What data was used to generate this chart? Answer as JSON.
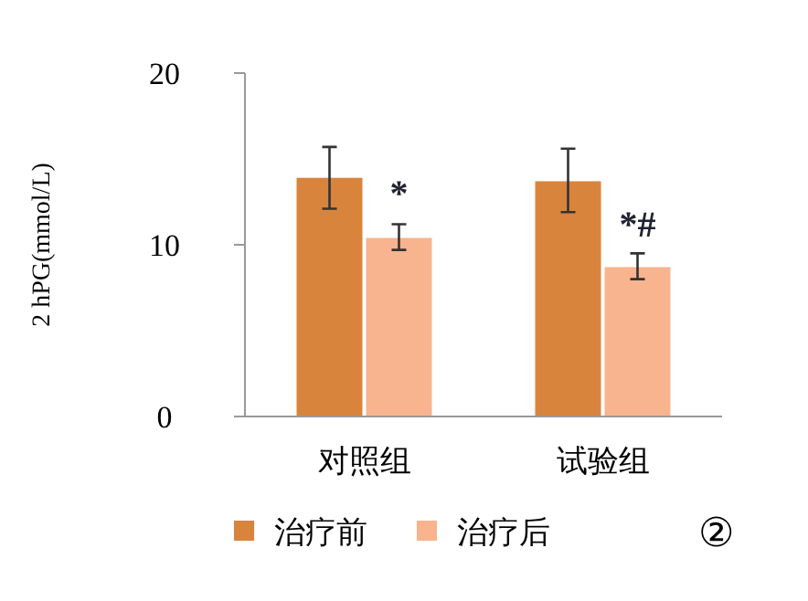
{
  "chart_data": {
    "type": "bar",
    "ylabel": "2 hPG(mmol/L)",
    "categories": [
      "对照组",
      "试验组"
    ],
    "series": [
      {
        "name": "治疗前",
        "color": "#d9843c",
        "values": [
          13.9,
          13.7
        ],
        "errors": [
          [
            12.1,
            15.7
          ],
          [
            11.9,
            15.6
          ]
        ]
      },
      {
        "name": "治疗后",
        "color": "#f8b48e",
        "values": [
          10.4,
          8.7
        ],
        "errors": [
          [
            9.7,
            11.2
          ],
          [
            8.0,
            9.5
          ]
        ]
      }
    ],
    "ylim": [
      0,
      20
    ],
    "yticks": [
      0,
      10,
      20
    ],
    "legend": "bottom",
    "annotations": [
      {
        "text": "*",
        "x": "对照组",
        "y": 12.3
      },
      {
        "text": "*#",
        "x": "试验组",
        "y": 10.5
      },
      "②"
    ]
  }
}
